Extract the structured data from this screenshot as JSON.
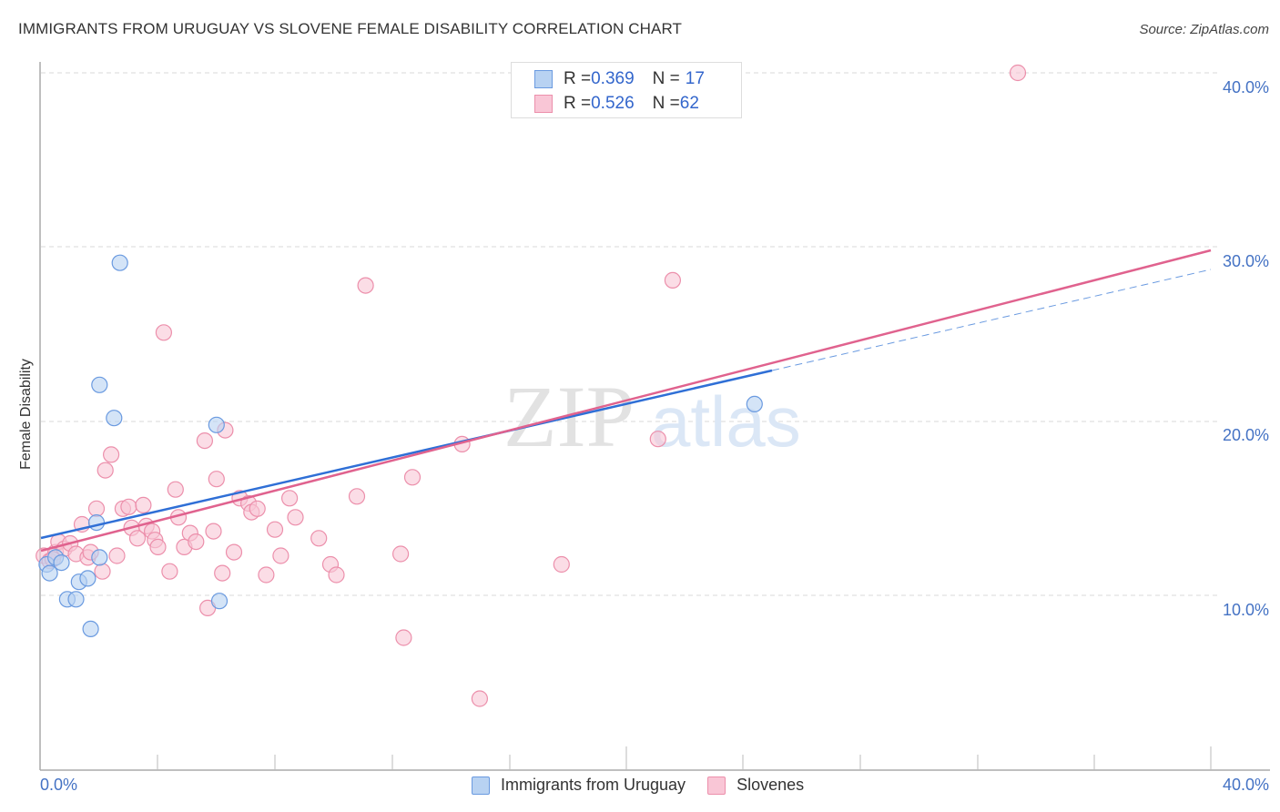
{
  "header": {
    "title": "IMMIGRANTS FROM URUGUAY VS SLOVENE FEMALE DISABILITY CORRELATION CHART",
    "source": "Source: ZipAtlas.com"
  },
  "legend_top": {
    "rows": [
      {
        "r_label": "R = ",
        "r_value": "0.369",
        "n_label": "N = ",
        "n_value": "17",
        "color": "#6699dd"
      },
      {
        "r_label": "R = ",
        "r_value": "0.526",
        "n_label": "N = ",
        "n_value": "62",
        "color": "#ee88aa"
      }
    ]
  },
  "axes": {
    "y_label": "Female Disability",
    "y_ticks": [
      "40.0%",
      "30.0%",
      "20.0%",
      "10.0%"
    ],
    "x_ticks": [
      "0.0%",
      "40.0%"
    ]
  },
  "legend_bottom": {
    "items": [
      {
        "label": "Immigrants from Uruguay",
        "color": "#6699dd"
      },
      {
        "label": "Slovenes",
        "color": "#ee88aa"
      }
    ]
  },
  "watermark": {
    "zip": "ZIP",
    "atlas": "atlas"
  },
  "colors": {
    "blue_fill": "#b8d2f2",
    "blue_stroke": "#6a9ae0",
    "blue_line": "#2f6fd6",
    "pink_fill": "#f9c6d6",
    "pink_stroke": "#ec8fab",
    "pink_line": "#e0628e",
    "tick_text": "#4472c4"
  },
  "chart_data": {
    "type": "scatter",
    "title": "IMMIGRANTS FROM URUGUAY VS SLOVENE FEMALE DISABILITY CORRELATION CHART",
    "xlabel": "Immigrants from Uruguay",
    "ylabel": "Female Disability",
    "xlim": [
      0,
      40
    ],
    "ylim": [
      0,
      42
    ],
    "x_ticks": [
      "0.0%",
      "40.0%"
    ],
    "y_ticks": [
      "10.0%",
      "20.0%",
      "30.0%",
      "40.0%"
    ],
    "grid": true,
    "legend_position": "bottom",
    "series": [
      {
        "name": "Immigrants from Uruguay",
        "R": 0.369,
        "N": 17,
        "points": [
          [
            0.2,
            11.8
          ],
          [
            0.3,
            11.3
          ],
          [
            0.5,
            12.2
          ],
          [
            0.7,
            11.9
          ],
          [
            0.9,
            9.8
          ],
          [
            1.2,
            9.8
          ],
          [
            1.3,
            10.8
          ],
          [
            1.6,
            11.0
          ],
          [
            1.7,
            8.1
          ],
          [
            1.9,
            14.2
          ],
          [
            2.0,
            12.2
          ],
          [
            2.0,
            22.1
          ],
          [
            2.5,
            20.2
          ],
          [
            2.7,
            29.1
          ],
          [
            6.0,
            19.8
          ],
          [
            6.1,
            9.7
          ],
          [
            24.4,
            21.0
          ]
        ],
        "trend": {
          "x0": 0,
          "y0": 13.1,
          "x1": 25.0,
          "y1": 22.8,
          "extended_to": [
            40,
            28.7
          ]
        }
      },
      {
        "name": "Slovenes",
        "R": 0.526,
        "N": 62,
        "points": [
          [
            0.1,
            12.3
          ],
          [
            0.3,
            12.0
          ],
          [
            0.5,
            12.5
          ],
          [
            0.6,
            13.1
          ],
          [
            0.8,
            12.7
          ],
          [
            1.0,
            13.0
          ],
          [
            1.2,
            12.4
          ],
          [
            1.4,
            14.1
          ],
          [
            1.6,
            12.2
          ],
          [
            1.7,
            12.5
          ],
          [
            1.9,
            15.0
          ],
          [
            2.1,
            11.4
          ],
          [
            2.2,
            17.2
          ],
          [
            2.4,
            18.1
          ],
          [
            2.6,
            12.3
          ],
          [
            2.8,
            15.0
          ],
          [
            3.0,
            15.1
          ],
          [
            3.1,
            13.9
          ],
          [
            3.3,
            13.3
          ],
          [
            3.5,
            15.2
          ],
          [
            3.6,
            14.0
          ],
          [
            3.8,
            13.7
          ],
          [
            3.9,
            13.2
          ],
          [
            4.0,
            12.8
          ],
          [
            4.2,
            25.1
          ],
          [
            4.4,
            11.4
          ],
          [
            4.6,
            16.1
          ],
          [
            4.7,
            14.5
          ],
          [
            4.9,
            12.8
          ],
          [
            5.1,
            13.6
          ],
          [
            5.3,
            13.1
          ],
          [
            5.6,
            18.9
          ],
          [
            5.7,
            9.3
          ],
          [
            5.9,
            13.7
          ],
          [
            6.0,
            16.7
          ],
          [
            6.2,
            11.3
          ],
          [
            6.3,
            19.5
          ],
          [
            6.6,
            12.5
          ],
          [
            6.8,
            15.6
          ],
          [
            7.1,
            15.3
          ],
          [
            7.2,
            14.8
          ],
          [
            7.4,
            15.0
          ],
          [
            7.7,
            11.2
          ],
          [
            8.0,
            13.8
          ],
          [
            8.2,
            12.3
          ],
          [
            8.5,
            15.6
          ],
          [
            8.7,
            14.5
          ],
          [
            9.5,
            13.3
          ],
          [
            9.9,
            11.8
          ],
          [
            10.1,
            11.2
          ],
          [
            10.8,
            15.7
          ],
          [
            11.1,
            27.8
          ],
          [
            12.3,
            12.4
          ],
          [
            12.4,
            7.6
          ],
          [
            12.7,
            16.8
          ],
          [
            14.4,
            18.7
          ],
          [
            15.0,
            4.1
          ],
          [
            17.8,
            11.8
          ],
          [
            21.1,
            19.0
          ],
          [
            21.6,
            28.1
          ],
          [
            33.4,
            40.0
          ],
          [
            0.4,
            12.1
          ]
        ],
        "trend": {
          "x0": 0,
          "y0": 12.4,
          "x1": 40,
          "y1": 29.6
        }
      }
    ]
  }
}
